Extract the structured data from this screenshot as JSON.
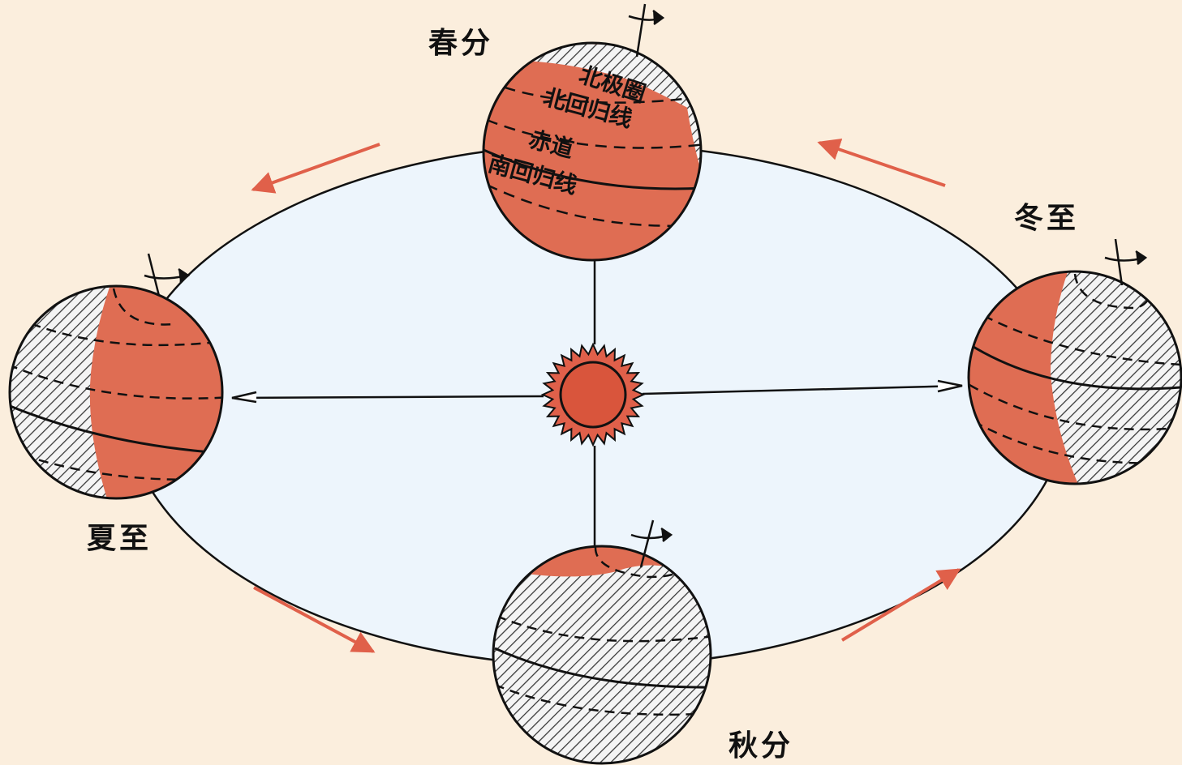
{
  "colors": {
    "background": "#fbeedd",
    "orbit_fill": "#edf5fc",
    "lit": "#df6d53",
    "night_hatch": "#3a3a3a",
    "arrow": "#e0604a",
    "sun": "#d9553c"
  },
  "seasons": {
    "spring": "春分",
    "summer": "夏至",
    "autumn": "秋分",
    "winter": "冬至"
  },
  "latitude_labels": {
    "arctic_circle": "北极圈",
    "tropic_cancer": "北回归线",
    "equator": "赤道",
    "tropic_capricorn": "南回归线"
  }
}
